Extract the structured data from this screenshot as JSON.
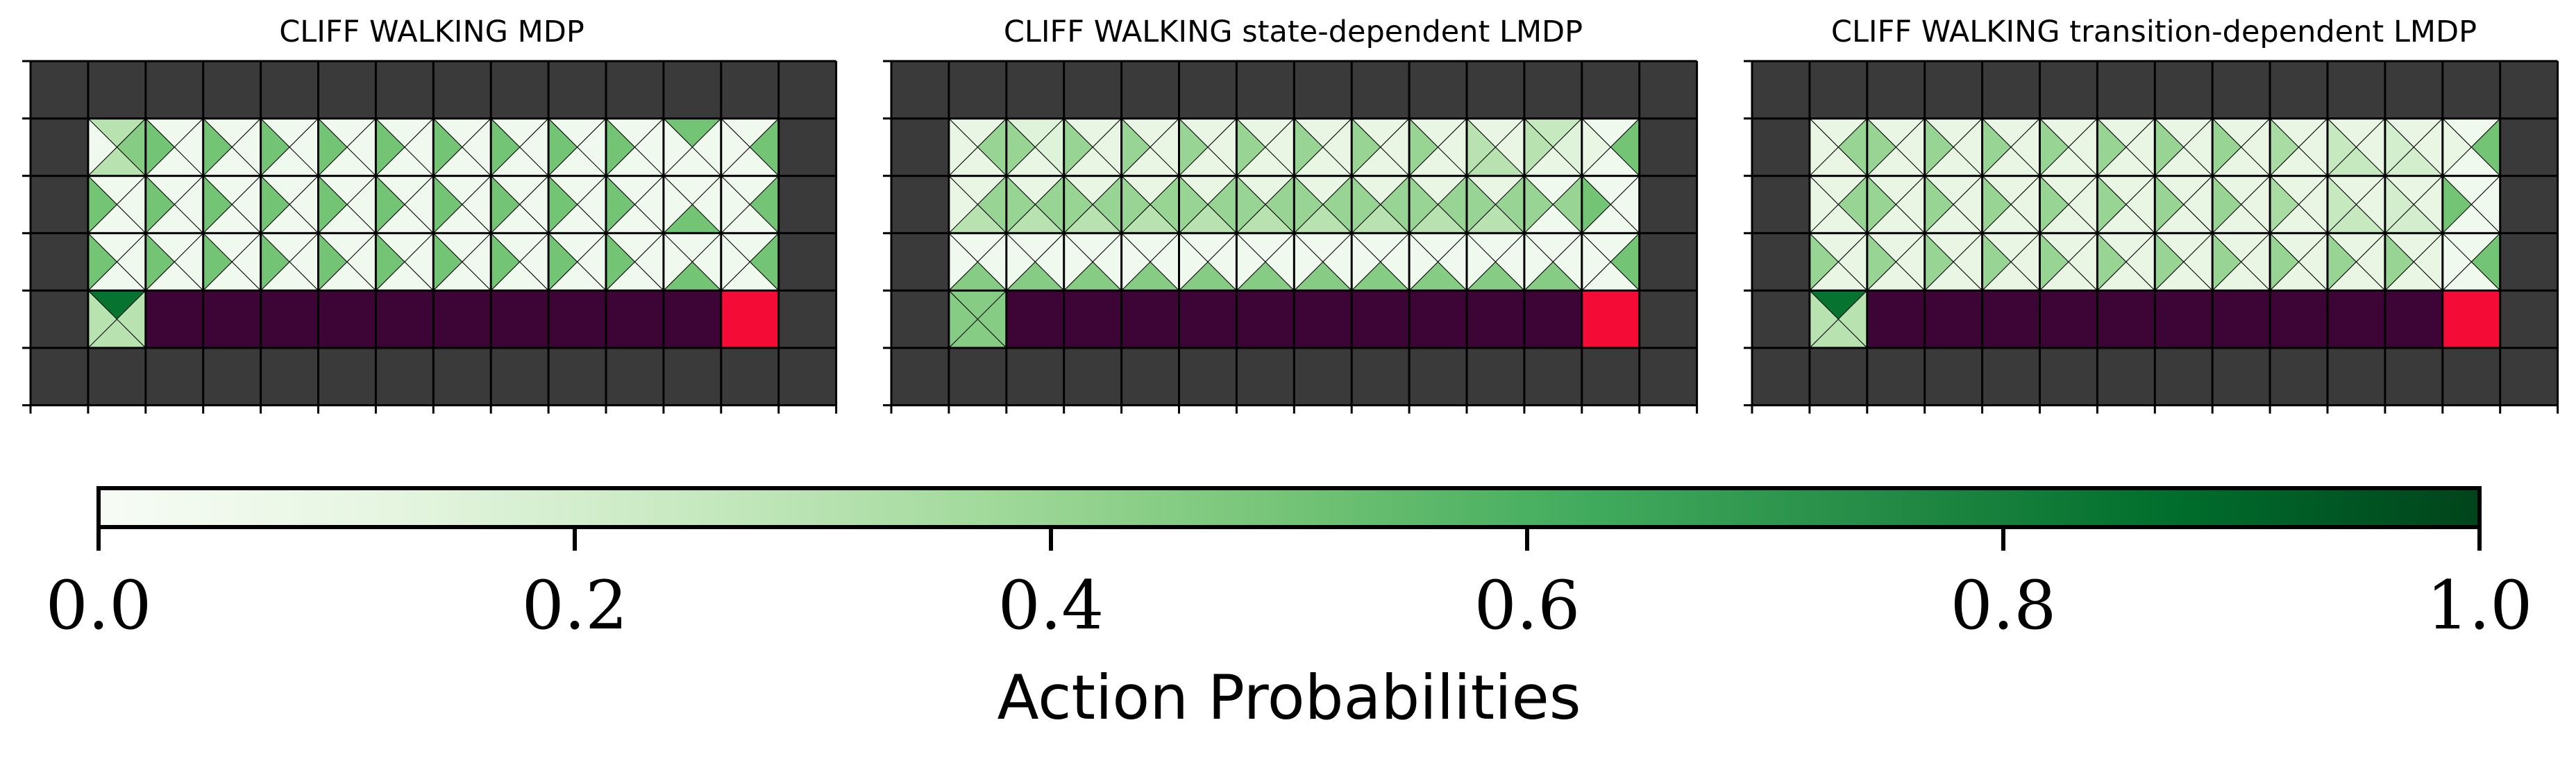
{
  "chart_data": {
    "type": "heatmap",
    "panels": [
      {
        "title": "CLIFF WALKING MDP",
        "cells": [
          [
            [
              0.3,
              0.45,
              0.3,
              0.05
            ],
            [
              0.05,
              0.05,
              0.05,
              0.5
            ],
            [
              0.05,
              0.05,
              0.05,
              0.5
            ],
            [
              0.05,
              0.05,
              0.05,
              0.5
            ],
            [
              0.05,
              0.05,
              0.05,
              0.5
            ],
            [
              0.05,
              0.05,
              0.05,
              0.5
            ],
            [
              0.05,
              0.05,
              0.05,
              0.5
            ],
            [
              0.05,
              0.05,
              0.05,
              0.5
            ],
            [
              0.05,
              0.05,
              0.05,
              0.5
            ],
            [
              0.05,
              0.05,
              0.05,
              0.5
            ],
            [
              0.5,
              0.05,
              0.05,
              0.05
            ],
            [
              0.05,
              0.5,
              0.05,
              0.05
            ]
          ],
          [
            [
              0.05,
              0.05,
              0.05,
              0.5
            ],
            [
              0.05,
              0.05,
              0.05,
              0.5
            ],
            [
              0.05,
              0.05,
              0.05,
              0.5
            ],
            [
              0.05,
              0.05,
              0.05,
              0.5
            ],
            [
              0.05,
              0.05,
              0.05,
              0.5
            ],
            [
              0.05,
              0.05,
              0.05,
              0.5
            ],
            [
              0.05,
              0.05,
              0.05,
              0.5
            ],
            [
              0.05,
              0.05,
              0.05,
              0.5
            ],
            [
              0.05,
              0.05,
              0.05,
              0.5
            ],
            [
              0.05,
              0.05,
              0.05,
              0.5
            ],
            [
              0.05,
              0.05,
              0.5,
              0.05
            ],
            [
              0.05,
              0.5,
              0.05,
              0.05
            ]
          ],
          [
            [
              0.05,
              0.05,
              0.05,
              0.5
            ],
            [
              0.05,
              0.05,
              0.05,
              0.5
            ],
            [
              0.05,
              0.05,
              0.05,
              0.5
            ],
            [
              0.05,
              0.05,
              0.05,
              0.5
            ],
            [
              0.05,
              0.05,
              0.05,
              0.5
            ],
            [
              0.05,
              0.05,
              0.05,
              0.5
            ],
            [
              0.05,
              0.05,
              0.05,
              0.5
            ],
            [
              0.05,
              0.05,
              0.05,
              0.5
            ],
            [
              0.05,
              0.05,
              0.05,
              0.5
            ],
            [
              0.05,
              0.05,
              0.05,
              0.5
            ],
            [
              0.05,
              0.05,
              0.5,
              0.05
            ],
            [
              0.05,
              0.5,
              0.05,
              0.05
            ]
          ],
          [
            [
              0.85,
              0.3,
              0.3,
              0.3
            ]
          ]
        ]
      },
      {
        "title": "CLIFF WALKING state-dependent LMDP",
        "cells": [
          [
            [
              0.1,
              0.4,
              0.1,
              0.1
            ],
            [
              0.15,
              0.15,
              0.1,
              0.4
            ],
            [
              0.1,
              0.1,
              0.1,
              0.4
            ],
            [
              0.1,
              0.1,
              0.1,
              0.4
            ],
            [
              0.1,
              0.1,
              0.1,
              0.4
            ],
            [
              0.1,
              0.1,
              0.1,
              0.4
            ],
            [
              0.1,
              0.1,
              0.1,
              0.4
            ],
            [
              0.1,
              0.1,
              0.1,
              0.4
            ],
            [
              0.1,
              0.1,
              0.1,
              0.4
            ],
            [
              0.1,
              0.1,
              0.3,
              0.3
            ],
            [
              0.25,
              0.15,
              0.1,
              0.3
            ],
            [
              0.05,
              0.5,
              0.05,
              0.1
            ]
          ],
          [
            [
              0.1,
              0.4,
              0.3,
              0.1
            ],
            [
              0.1,
              0.4,
              0.3,
              0.4
            ],
            [
              0.1,
              0.4,
              0.3,
              0.4
            ],
            [
              0.1,
              0.4,
              0.3,
              0.4
            ],
            [
              0.1,
              0.4,
              0.3,
              0.4
            ],
            [
              0.1,
              0.4,
              0.3,
              0.4
            ],
            [
              0.1,
              0.4,
              0.3,
              0.4
            ],
            [
              0.1,
              0.4,
              0.3,
              0.4
            ],
            [
              0.1,
              0.4,
              0.3,
              0.4
            ],
            [
              0.1,
              0.4,
              0.3,
              0.4
            ],
            [
              0.05,
              0.4,
              0.05,
              0.4
            ],
            [
              0.05,
              0.05,
              0.05,
              0.5
            ]
          ],
          [
            [
              0.05,
              0.05,
              0.45,
              0.05
            ],
            [
              0.05,
              0.05,
              0.45,
              0.05
            ],
            [
              0.05,
              0.05,
              0.45,
              0.05
            ],
            [
              0.05,
              0.05,
              0.45,
              0.05
            ],
            [
              0.05,
              0.05,
              0.45,
              0.05
            ],
            [
              0.05,
              0.05,
              0.45,
              0.05
            ],
            [
              0.05,
              0.05,
              0.45,
              0.05
            ],
            [
              0.05,
              0.05,
              0.45,
              0.05
            ],
            [
              0.05,
              0.05,
              0.45,
              0.05
            ],
            [
              0.05,
              0.05,
              0.45,
              0.05
            ],
            [
              0.05,
              0.05,
              0.45,
              0.05
            ],
            [
              0.05,
              0.5,
              0.05,
              0.05
            ]
          ],
          [
            [
              0.45,
              0.45,
              0.45,
              0.45
            ]
          ]
        ]
      },
      {
        "title": "CLIFF WALKING transition-dependent LMDP",
        "cells": [
          [
            [
              0.1,
              0.4,
              0.1,
              0.1
            ],
            [
              0.1,
              0.1,
              0.1,
              0.4
            ],
            [
              0.1,
              0.1,
              0.1,
              0.4
            ],
            [
              0.1,
              0.1,
              0.1,
              0.4
            ],
            [
              0.1,
              0.1,
              0.1,
              0.4
            ],
            [
              0.1,
              0.1,
              0.1,
              0.4
            ],
            [
              0.1,
              0.1,
              0.1,
              0.4
            ],
            [
              0.1,
              0.1,
              0.1,
              0.4
            ],
            [
              0.1,
              0.1,
              0.1,
              0.35
            ],
            [
              0.1,
              0.1,
              0.25,
              0.25
            ],
            [
              0.1,
              0.1,
              0.2,
              0.2
            ],
            [
              0.05,
              0.5,
              0.05,
              0.1
            ]
          ],
          [
            [
              0.1,
              0.4,
              0.1,
              0.1
            ],
            [
              0.1,
              0.1,
              0.1,
              0.4
            ],
            [
              0.1,
              0.1,
              0.1,
              0.4
            ],
            [
              0.1,
              0.1,
              0.1,
              0.4
            ],
            [
              0.1,
              0.1,
              0.1,
              0.4
            ],
            [
              0.1,
              0.1,
              0.1,
              0.4
            ],
            [
              0.1,
              0.1,
              0.1,
              0.4
            ],
            [
              0.1,
              0.1,
              0.1,
              0.4
            ],
            [
              0.1,
              0.1,
              0.1,
              0.35
            ],
            [
              0.1,
              0.1,
              0.25,
              0.25
            ],
            [
              0.1,
              0.1,
              0.2,
              0.2
            ],
            [
              0.05,
              0.05,
              0.05,
              0.5
            ]
          ],
          [
            [
              0.1,
              0.1,
              0.1,
              0.4
            ],
            [
              0.1,
              0.1,
              0.1,
              0.4
            ],
            [
              0.1,
              0.1,
              0.1,
              0.4
            ],
            [
              0.1,
              0.1,
              0.1,
              0.4
            ],
            [
              0.1,
              0.1,
              0.1,
              0.4
            ],
            [
              0.1,
              0.1,
              0.1,
              0.4
            ],
            [
              0.1,
              0.1,
              0.1,
              0.4
            ],
            [
              0.1,
              0.1,
              0.1,
              0.4
            ],
            [
              0.1,
              0.1,
              0.1,
              0.4
            ],
            [
              0.1,
              0.1,
              0.1,
              0.4
            ],
            [
              0.1,
              0.1,
              0.1,
              0.4
            ],
            [
              0.05,
              0.5,
              0.05,
              0.05
            ]
          ],
          [
            [
              0.85,
              0.3,
              0.3,
              0.3
            ]
          ]
        ]
      }
    ],
    "action_order": [
      "up",
      "right",
      "down",
      "left"
    ],
    "colorbar": {
      "label": "Action Probabilities",
      "ticks": [
        "0.0",
        "0.2",
        "0.4",
        "0.6",
        "0.8",
        "1.0"
      ],
      "range": [
        0,
        1
      ],
      "colormap": "Greens"
    },
    "colors": {
      "wall": "#3a3a3a",
      "cliff": "#3d0535",
      "goal": "#f40b36"
    }
  }
}
